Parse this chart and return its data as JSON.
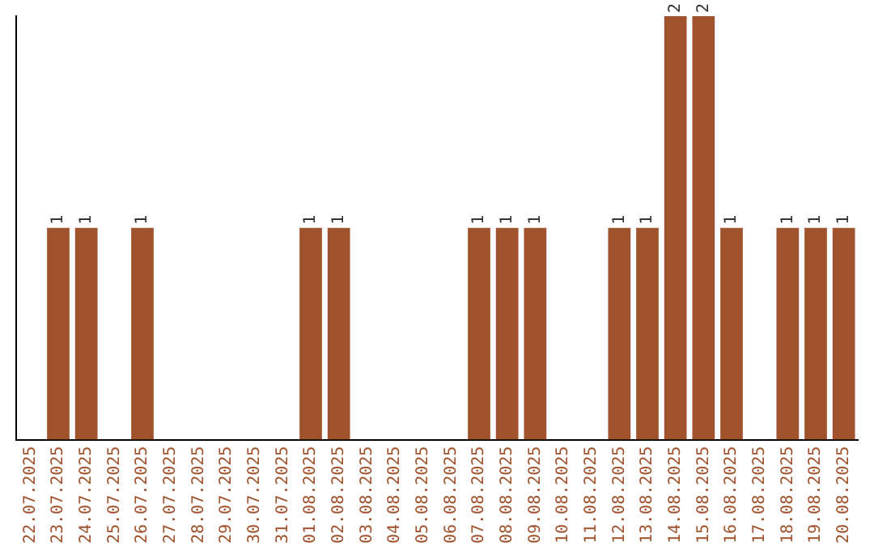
{
  "chart_data": {
    "type": "bar",
    "categories": [
      "22.07.2025",
      "23.07.2025",
      "24.07.2025",
      "25.07.2025",
      "26.07.2025",
      "27.07.2025",
      "28.07.2025",
      "29.07.2025",
      "30.07.2025",
      "31.07.2025",
      "01.08.2025",
      "02.08.2025",
      "03.08.2025",
      "04.08.2025",
      "05.08.2025",
      "06.08.2025",
      "07.08.2025",
      "08.08.2025",
      "09.08.2025",
      "10.08.2025",
      "11.08.2025",
      "12.08.2025",
      "13.08.2025",
      "14.08.2025",
      "15.08.2025",
      "16.08.2025",
      "17.08.2025",
      "18.08.2025",
      "19.08.2025",
      "20.08.2025"
    ],
    "values": [
      0,
      1,
      1,
      0,
      1,
      0,
      0,
      0,
      0,
      0,
      1,
      1,
      0,
      0,
      0,
      0,
      1,
      1,
      1,
      0,
      0,
      1,
      1,
      2,
      2,
      1,
      0,
      1,
      1,
      1
    ],
    "value_labels": [
      null,
      "1",
      "1",
      null,
      "1",
      null,
      null,
      null,
      null,
      null,
      "1",
      "1",
      null,
      null,
      null,
      null,
      "1",
      "1",
      "1",
      null,
      null,
      "1",
      "1",
      "2",
      "2",
      "1",
      null,
      "1",
      "1",
      "1"
    ],
    "color": "#a0522d",
    "ylim": [
      0,
      2
    ],
    "tick_labels": "x",
    "grid": false,
    "legend": false
  }
}
